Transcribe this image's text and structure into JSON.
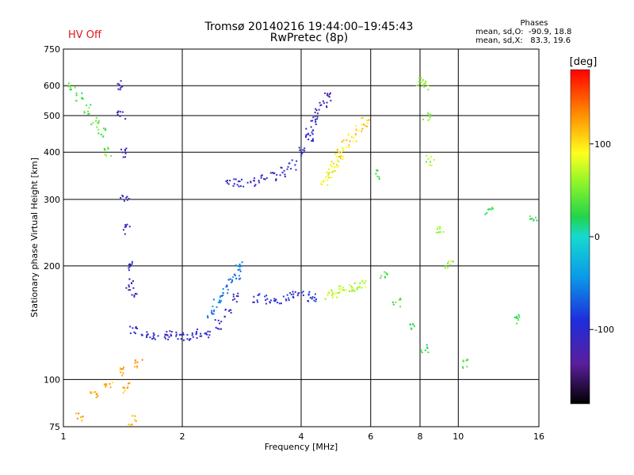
{
  "header": {
    "title_line1": "Tromsø 20140216 19:44:00–19:45:43",
    "title_line2": "RwPretec (8p)",
    "status": "HV Off",
    "status_color": "#e4141f"
  },
  "phases": {
    "title": "Phases",
    "line_o": "mean, sd,O:  -90.9, 18.8",
    "line_x": "mean, sd,X:   83.3, 19.6"
  },
  "colorbar": {
    "label": "[deg]",
    "ticks": [
      "100",
      "0",
      "-100"
    ],
    "tick_values": [
      100,
      0,
      -100
    ],
    "range": [
      -180,
      180
    ],
    "palette": "rainbow (black-purple-blue-cyan-green-yellow-orange-red)"
  },
  "chart_data": {
    "type": "scatter",
    "xlabel": "Frequency [MHz]",
    "ylabel": "Stationary phase Virtual Height [km]",
    "x_scale": "log",
    "y_scale": "log",
    "xlim": [
      1,
      16
    ],
    "ylim": [
      75,
      750
    ],
    "x_ticks": [
      1,
      2,
      4,
      6,
      8,
      10,
      16
    ],
    "x_tick_labels": [
      "1",
      "2",
      "4",
      "6",
      "8",
      "10",
      "16"
    ],
    "y_ticks": [
      75,
      100,
      200,
      300,
      400,
      500,
      600,
      750
    ],
    "y_tick_labels": [
      "75",
      "100",
      "200",
      "300",
      "400",
      "500",
      "600",
      "750"
    ],
    "grid": true,
    "colorbar_quantity": "phase [deg]",
    "traces": [
      {
        "x": [
          1.5,
          1.6,
          1.7,
          1.8,
          1.9,
          2.0,
          2.1,
          2.2,
          2.3,
          2.45,
          2.6,
          2.75
        ],
        "y": [
          135,
          132,
          131,
          130,
          131,
          130,
          131,
          132,
          133,
          140,
          150,
          165
        ],
        "phase": -105
      },
      {
        "x": [
          2.35,
          2.45,
          2.55,
          2.65,
          2.75,
          2.8
        ],
        "y": [
          150,
          160,
          170,
          180,
          190,
          200
        ],
        "phase": -60
      },
      {
        "x": [
          2.65,
          2.8,
          3.0,
          3.2,
          3.4,
          3.6,
          3.8,
          4.0,
          4.2
        ],
        "y": [
          330,
          330,
          335,
          340,
          345,
          355,
          370,
          400,
          440
        ],
        "phase": -105
      },
      {
        "x": [
          4.2,
          4.3,
          4.4,
          4.55,
          4.7
        ],
        "y": [
          450,
          480,
          510,
          540,
          560
        ],
        "phase": -110
      },
      {
        "x": [
          3.1,
          3.3,
          3.5,
          3.7,
          3.9,
          4.1,
          4.3
        ],
        "y": [
          165,
          163,
          162,
          165,
          168,
          166,
          164
        ],
        "phase": -95
      },
      {
        "x": [
          4.7,
          4.9,
          5.1,
          5.3,
          5.5,
          5.7
        ],
        "y": [
          168,
          170,
          172,
          174,
          176,
          178
        ],
        "phase": 70
      },
      {
        "x": [
          4.6,
          4.7,
          4.8,
          4.9,
          5.0
        ],
        "y": [
          330,
          345,
          360,
          375,
          395
        ],
        "phase": 90
      },
      {
        "x": [
          5.0,
          5.2,
          5.4,
          5.6,
          5.8
        ],
        "y": [
          400,
          420,
          440,
          460,
          480
        ],
        "phase": 105
      },
      {
        "x": [
          1.4,
          1.4,
          1.42,
          1.43,
          1.45,
          1.47,
          1.48,
          1.5
        ],
        "y": [
          600,
          500,
          400,
          300,
          250,
          200,
          180,
          170
        ],
        "phase": -110
      },
      {
        "x": [
          1.05,
          1.1,
          1.15,
          1.2,
          1.25,
          1.3
        ],
        "y": [
          600,
          560,
          520,
          480,
          450,
          400
        ],
        "phase": 40
      },
      {
        "x": [
          8.0,
          8.2,
          8.3,
          8.5,
          9.0,
          9.5
        ],
        "y": [
          620,
          600,
          500,
          380,
          250,
          200
        ],
        "phase": 60
      },
      {
        "x": [
          6.2,
          6.5,
          7.0,
          7.6,
          8.2,
          10.5,
          12.0,
          14.0,
          15.5
        ],
        "y": [
          350,
          190,
          160,
          140,
          120,
          110,
          280,
          145,
          270
        ],
        "phase": 30
      },
      {
        "x": [
          1.1,
          1.2,
          1.3,
          1.4,
          1.45,
          1.5,
          1.55
        ],
        "y": [
          80,
          90,
          98,
          105,
          95,
          78,
          110
        ],
        "phase": 120
      }
    ]
  }
}
